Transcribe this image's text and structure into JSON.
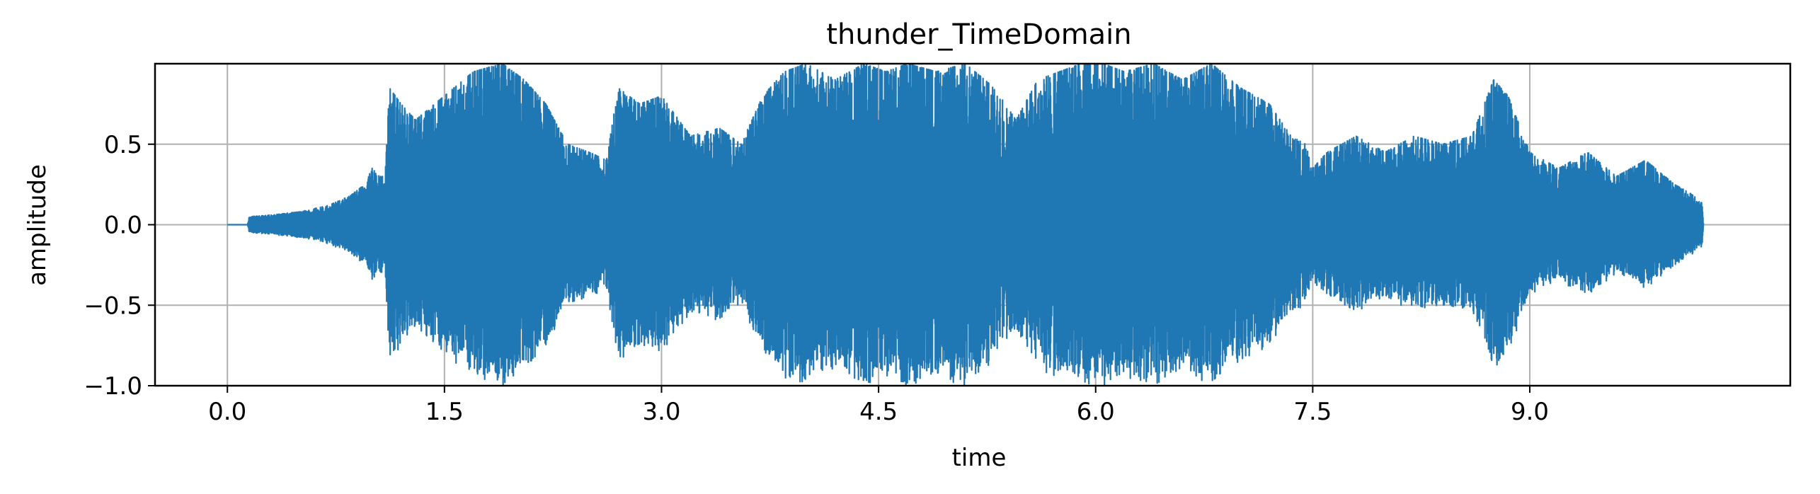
{
  "chart_data": {
    "type": "line",
    "title": "thunder_TimeDomain",
    "xlabel": "time",
    "ylabel": "amplitude",
    "xlim": [
      -0.5,
      10.8
    ],
    "ylim": [
      -1.0,
      1.0
    ],
    "x_ticks": [
      0.0,
      1.5,
      3.0,
      4.5,
      6.0,
      7.5,
      9.0
    ],
    "x_tick_labels": [
      "0.0",
      "1.5",
      "3.0",
      "4.5",
      "6.0",
      "7.5",
      "9.0"
    ],
    "y_ticks": [
      -1.0,
      -0.5,
      0.0,
      0.5
    ],
    "y_tick_labels": [
      "−1.0",
      "−0.5",
      "0.0",
      "0.5"
    ],
    "grid": true,
    "series": [
      {
        "color": "#1f77b4",
        "envelope": {
          "description_units": "time (s) vs peak absolute amplitude",
          "t": [
            0.0,
            0.14,
            0.15,
            0.3,
            0.5,
            0.7,
            0.85,
            0.95,
            1.0,
            1.05,
            1.09,
            1.12,
            1.2,
            1.3,
            1.5,
            1.7,
            1.9,
            2.05,
            2.2,
            2.35,
            2.5,
            2.62,
            2.7,
            2.85,
            3.0,
            3.2,
            3.4,
            3.55,
            3.7,
            3.85,
            4.0,
            4.2,
            4.4,
            4.55,
            4.7,
            4.9,
            5.1,
            5.3,
            5.45,
            5.6,
            5.75,
            5.9,
            6.05,
            6.2,
            6.4,
            6.6,
            6.8,
            7.0,
            7.2,
            7.35,
            7.45,
            7.5,
            7.6,
            7.8,
            8.0,
            8.2,
            8.4,
            8.6,
            8.75,
            8.85,
            9.0,
            9.2,
            9.4,
            9.6,
            9.8,
            10.0,
            10.1,
            10.19,
            10.2
          ],
          "peak": [
            0.0,
            0.0,
            0.05,
            0.06,
            0.08,
            0.12,
            0.18,
            0.25,
            0.35,
            0.3,
            0.3,
            0.85,
            0.75,
            0.65,
            0.8,
            0.95,
            1.0,
            0.9,
            0.75,
            0.5,
            0.45,
            0.4,
            0.85,
            0.75,
            0.8,
            0.55,
            0.6,
            0.5,
            0.8,
            0.95,
            1.0,
            0.9,
            1.0,
            0.95,
            1.0,
            0.95,
            1.0,
            0.85,
            0.65,
            0.9,
            0.95,
            1.0,
            1.0,
            0.95,
            1.0,
            0.9,
            1.0,
            0.85,
            0.75,
            0.55,
            0.5,
            0.35,
            0.45,
            0.55,
            0.45,
            0.55,
            0.5,
            0.55,
            0.9,
            0.8,
            0.45,
            0.35,
            0.45,
            0.3,
            0.4,
            0.25,
            0.2,
            0.14,
            0.0
          ]
        }
      }
    ]
  }
}
